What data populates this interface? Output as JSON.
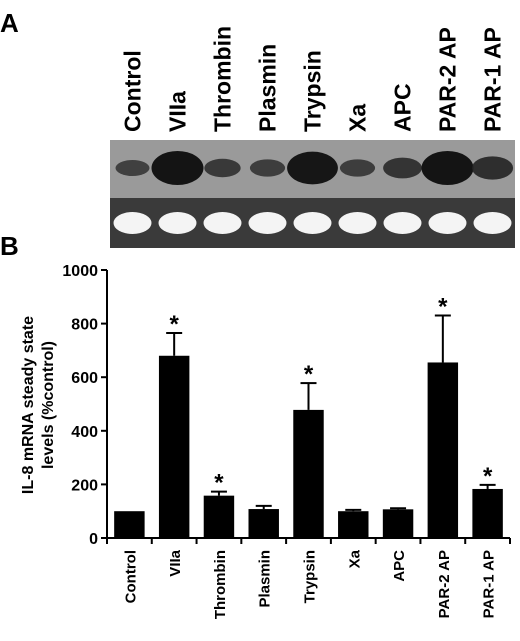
{
  "panels": {
    "a_label": "A",
    "b_label": "B"
  },
  "blot": {
    "lanes": [
      "Control",
      "VIIa",
      "Thrombin",
      "Plasmin",
      "Trypsin",
      "Xa",
      "APC",
      "PAR-2 AP",
      "PAR-1 AP"
    ],
    "band_intensity": [
      0.25,
      1.0,
      0.35,
      0.3,
      0.95,
      0.3,
      0.45,
      1.0,
      0.55
    ]
  },
  "chart_data": {
    "type": "bar",
    "title": "",
    "xlabel": "",
    "ylabel_line1": "IL-8 mRNA steady state",
    "ylabel_line2": "levels (%control)",
    "ylim": [
      0,
      1000
    ],
    "yticks": [
      0,
      200,
      400,
      600,
      800,
      1000
    ],
    "categories": [
      "Control",
      "VIIa",
      "Thrombin",
      "Plasmin",
      "Trypsin",
      "Xa",
      "APC",
      "PAR-2 AP",
      "PAR-1 AP"
    ],
    "values": [
      100,
      680,
      158,
      108,
      478,
      100,
      107,
      655,
      183
    ],
    "errors": [
      0,
      85,
      15,
      12,
      100,
      5,
      4,
      175,
      15
    ],
    "significant": [
      false,
      true,
      true,
      false,
      true,
      false,
      false,
      true,
      true
    ],
    "significance_marker": "*",
    "bar_color": "#000000"
  }
}
